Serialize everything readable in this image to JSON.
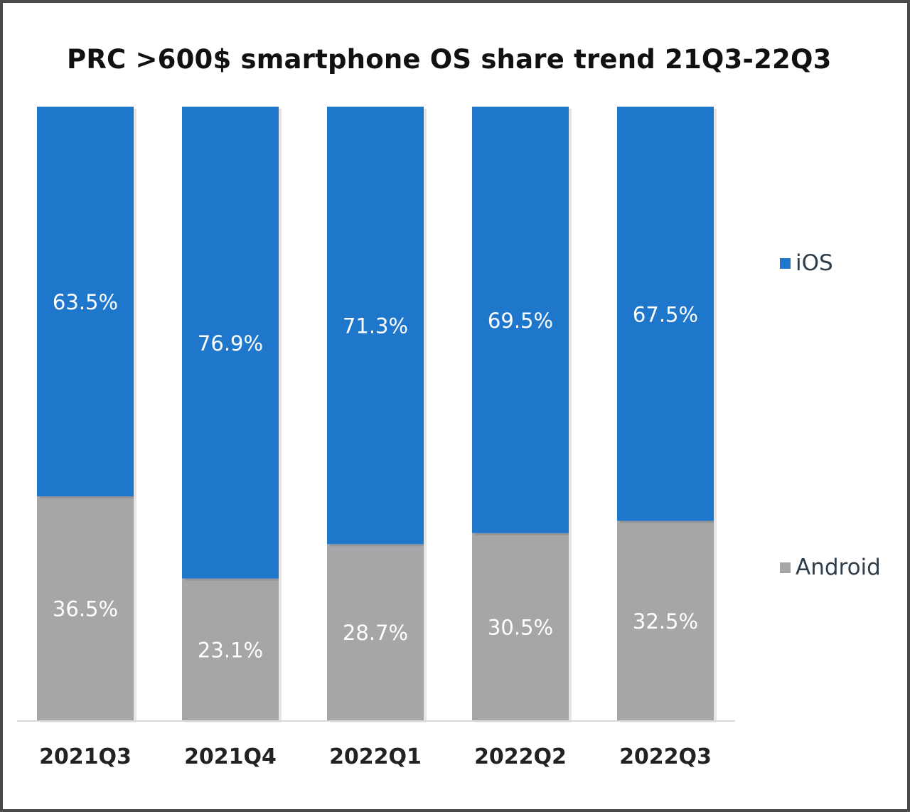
{
  "chart_data": {
    "type": "bar",
    "stacked": true,
    "normalized_percent": true,
    "title": "PRC >600$ smartphone OS share trend 21Q3-22Q3",
    "categories": [
      "2021Q3",
      "2021Q4",
      "2022Q1",
      "2022Q2",
      "2022Q3"
    ],
    "series": [
      {
        "name": "Android",
        "values": [
          36.5,
          23.1,
          28.7,
          30.5,
          32.5
        ],
        "labels": [
          "36.5%",
          "23.1%",
          "28.7%",
          "30.5%",
          "32.5%"
        ],
        "color": "#a6a6a9"
      },
      {
        "name": "iOS",
        "values": [
          63.5,
          76.9,
          71.3,
          69.5,
          67.5
        ],
        "labels": [
          "63.5%",
          "76.9%",
          "71.3%",
          "69.5%",
          "67.5%"
        ],
        "color": "#1f77cc"
      }
    ],
    "ylim": [
      0,
      100
    ],
    "grid": false,
    "legend_position": "right"
  }
}
